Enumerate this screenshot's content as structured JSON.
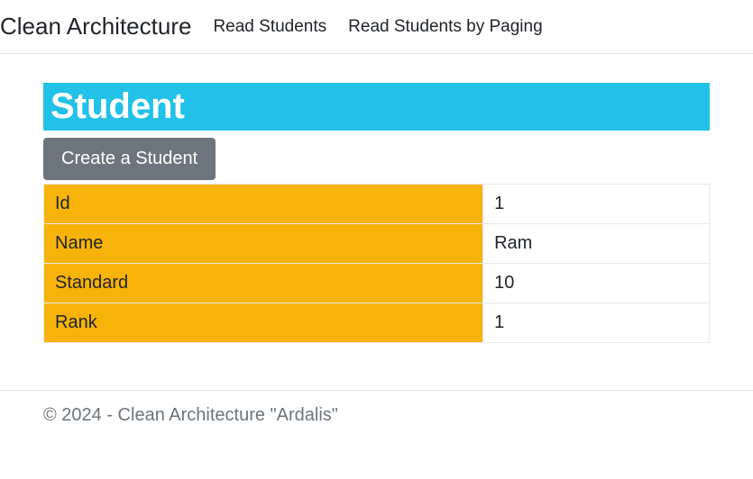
{
  "navbar": {
    "brand": "Clean Architecture",
    "links": [
      {
        "label": "Read Students"
      },
      {
        "label": "Read Students by Paging"
      }
    ]
  },
  "page": {
    "title": "Student",
    "create_button": "Create a Student"
  },
  "colors": {
    "title_bg": "#22c1e8",
    "title_fg": "#ffffff",
    "button_bg": "#6c757d",
    "button_fg": "#ffffff",
    "label_bg": "#f7b30a",
    "value_bg": "#ffffff",
    "border": "#e8e8e8",
    "footer_fg": "#6c757d"
  },
  "student": {
    "rows": [
      {
        "label": "Id",
        "value": "1"
      },
      {
        "label": "Name",
        "value": "Ram"
      },
      {
        "label": "Standard",
        "value": "10"
      },
      {
        "label": "Rank",
        "value": "1"
      }
    ]
  },
  "footer": {
    "text": "© 2024 - Clean Architecture \"Ardalis\""
  }
}
